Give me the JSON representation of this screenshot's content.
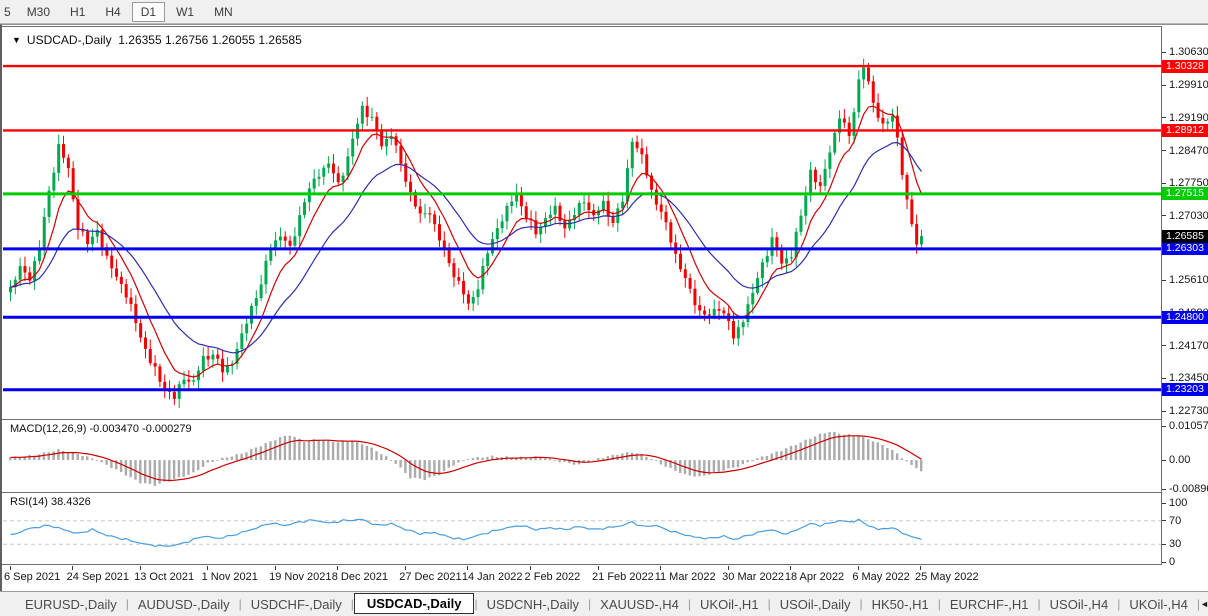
{
  "toolbar": {
    "timeframes": [
      {
        "label": "5",
        "active": false
      },
      {
        "label": "M30",
        "active": false
      },
      {
        "label": "H1",
        "active": false
      },
      {
        "label": "H4",
        "active": false
      },
      {
        "label": "D1",
        "active": true
      },
      {
        "label": "W1",
        "active": false
      },
      {
        "label": "MN",
        "active": false
      }
    ]
  },
  "chart_data": {
    "type": "candlestick",
    "symbol": "USDCAD",
    "timeframe": "Daily",
    "dropdown_icon": "▼",
    "header_display": "USDCAD-,Daily  1.26355 1.26756 1.26055 1.26585",
    "ohlc_display": {
      "open": "1.26355",
      "high": "1.26756",
      "low": "1.26055",
      "close": "1.26585"
    },
    "grid": false,
    "legend_position": "none",
    "y_axis": {
      "visible_range": [
        1.2258,
        1.3119
      ],
      "ticks": [
        {
          "value": 1.3063,
          "label": "1.30630"
        },
        {
          "value": 1.2991,
          "label": "1.29910"
        },
        {
          "value": 1.2919,
          "label": "1.29190"
        },
        {
          "value": 1.2847,
          "label": "1.28470"
        },
        {
          "value": 1.2775,
          "label": "1.27750"
        },
        {
          "value": 1.2703,
          "label": "1.27030"
        },
        {
          "value": 1.2631,
          "label": "1.26310"
        },
        {
          "value": 1.2561,
          "label": "1.25610"
        },
        {
          "value": 1.2489,
          "label": "1.24890"
        },
        {
          "value": 1.2417,
          "label": "1.24170"
        },
        {
          "value": 1.2345,
          "label": "1.23450"
        },
        {
          "value": 1.2273,
          "label": "1.22730"
        }
      ]
    },
    "x_axis": {
      "ticks": [
        {
          "label": "6 Sep 2021",
          "candle": 0
        },
        {
          "label": "24 Sep 2021",
          "candle": 13
        },
        {
          "label": "13 Oct 2021",
          "candle": 27
        },
        {
          "label": "1 Nov 2021",
          "candle": 41
        },
        {
          "label": "19 Nov 2021",
          "candle": 55
        },
        {
          "label": "8 Dec 2021",
          "candle": 68
        },
        {
          "label": "27 Dec 2021",
          "candle": 82
        },
        {
          "label": "14 Jan 2022",
          "candle": 95
        },
        {
          "label": "2 Feb 2022",
          "candle": 108
        },
        {
          "label": "21 Feb 2022",
          "candle": 122
        },
        {
          "label": "11 Mar 2022",
          "candle": 135
        },
        {
          "label": "30 Mar 2022",
          "candle": 149
        },
        {
          "label": "18 Apr 2022",
          "candle": 162
        },
        {
          "label": "6 May 2022",
          "candle": 176
        },
        {
          "label": "25 May 2022",
          "candle": 189
        }
      ]
    },
    "levels": [
      {
        "price": 1.30328,
        "label": "1.30328",
        "color": "#FF0000",
        "role": "resistance"
      },
      {
        "price": 1.28912,
        "label": "1.28912",
        "color": "#FF0000",
        "role": "resistance"
      },
      {
        "price": 1.27515,
        "label": "1.27515",
        "color": "#00CC00",
        "role": "pivot"
      },
      {
        "price": 1.26303,
        "label": "1.26303",
        "color": "#0000EE",
        "role": "support"
      },
      {
        "price": 1.248,
        "label": "1.24800",
        "color": "#0000EE",
        "role": "support"
      },
      {
        "price": 1.23203,
        "label": "1.23203",
        "color": "#0000EE",
        "role": "support"
      }
    ],
    "current_price": {
      "value": 1.26585,
      "label": "1.26585",
      "label_bg": "#000000"
    },
    "candles": {
      "count": 190,
      "note": "approximate digitized daily closes, Sep 2021 - May 2022",
      "close_keypoints": [
        [
          0,
          1.2545
        ],
        [
          2,
          1.2585
        ],
        [
          4,
          1.257
        ],
        [
          6,
          1.263
        ],
        [
          8,
          1.276
        ],
        [
          10,
          1.2855
        ],
        [
          12,
          1.2805
        ],
        [
          14,
          1.268
        ],
        [
          16,
          1.264
        ],
        [
          18,
          1.2675
        ],
        [
          20,
          1.2605
        ],
        [
          23,
          1.2555
        ],
        [
          26,
          1.247
        ],
        [
          29,
          1.238
        ],
        [
          32,
          1.2325
        ],
        [
          34,
          1.23
        ],
        [
          36,
          1.235
        ],
        [
          38,
          1.2335
        ],
        [
          40,
          1.239
        ],
        [
          42,
          1.24
        ],
        [
          44,
          1.236
        ],
        [
          46,
          1.2385
        ],
        [
          48,
          1.2435
        ],
        [
          50,
          1.2505
        ],
        [
          52,
          1.255
        ],
        [
          54,
          1.264
        ],
        [
          56,
          1.266
        ],
        [
          58,
          1.263
        ],
        [
          60,
          1.2705
        ],
        [
          62,
          1.276
        ],
        [
          64,
          1.28
        ],
        [
          66,
          1.2815
        ],
        [
          68,
          1.2775
        ],
        [
          70,
          1.283
        ],
        [
          73,
          1.2945
        ],
        [
          75,
          1.2915
        ],
        [
          77,
          1.286
        ],
        [
          79,
          1.2885
        ],
        [
          81,
          1.2815
        ],
        [
          83,
          1.2755
        ],
        [
          85,
          1.27
        ],
        [
          87,
          1.2715
        ],
        [
          89,
          1.265
        ],
        [
          91,
          1.26
        ],
        [
          93,
          1.2555
        ],
        [
          95,
          1.2505
        ],
        [
          97,
          1.255
        ],
        [
          99,
          1.262
        ],
        [
          101,
          1.268
        ],
        [
          103,
          1.2715
        ],
        [
          105,
          1.2755
        ],
        [
          107,
          1.27
        ],
        [
          109,
          1.2665
        ],
        [
          111,
          1.27
        ],
        [
          113,
          1.2715
        ],
        [
          115,
          1.268
        ],
        [
          117,
          1.2705
        ],
        [
          119,
          1.274
        ],
        [
          121,
          1.27
        ],
        [
          123,
          1.273
        ],
        [
          125,
          1.269
        ],
        [
          127,
          1.2735
        ],
        [
          129,
          1.2875
        ],
        [
          131,
          1.283
        ],
        [
          133,
          1.276
        ],
        [
          135,
          1.271
        ],
        [
          137,
          1.265
        ],
        [
          139,
          1.259
        ],
        [
          141,
          1.2535
        ],
        [
          143,
          1.2495
        ],
        [
          145,
          1.248
        ],
        [
          147,
          1.2505
        ],
        [
          149,
          1.247
        ],
        [
          150,
          1.243
        ],
        [
          152,
          1.248
        ],
        [
          154,
          1.253
        ],
        [
          156,
          1.26
        ],
        [
          158,
          1.265
        ],
        [
          160,
          1.26
        ],
        [
          162,
          1.262
        ],
        [
          164,
          1.27
        ],
        [
          166,
          1.2805
        ],
        [
          168,
          1.276
        ],
        [
          170,
          1.285
        ],
        [
          172,
          1.292
        ],
        [
          174,
          1.288
        ],
        [
          176,
          1.3
        ],
        [
          177,
          1.303
        ],
        [
          179,
          1.2955
        ],
        [
          181,
          1.29
        ],
        [
          183,
          1.292
        ],
        [
          184,
          1.288
        ],
        [
          185,
          1.28
        ],
        [
          186,
          1.273
        ],
        [
          188,
          1.264
        ],
        [
          189,
          1.26585
        ]
      ]
    },
    "moving_averages": [
      {
        "color": "#CE0000",
        "approx_period": 8
      },
      {
        "color": "#2E2EA8",
        "approx_period": 21
      }
    ],
    "indicators": {
      "macd": {
        "label_display": "MACD(12,26,9) -0.003470 -0.000279",
        "name": "MACD",
        "params": [
          12,
          26,
          9
        ],
        "macd_value": -0.00347,
        "signal_value": -0.000279,
        "axis_ticks": [
          {
            "value": 0.010578,
            "label": "0.010578"
          },
          {
            "value": 0,
            "label": "0.00"
          },
          {
            "value": -0.00896,
            "label": "-0.00896"
          }
        ],
        "series_keypoints": [
          [
            0,
            0.0008
          ],
          [
            5,
            0.0015
          ],
          [
            10,
            0.0032
          ],
          [
            14,
            0.002
          ],
          [
            18,
            0.0
          ],
          [
            22,
            -0.003
          ],
          [
            27,
            -0.007
          ],
          [
            30,
            -0.0078
          ],
          [
            34,
            -0.006
          ],
          [
            38,
            -0.004
          ],
          [
            41,
            -0.001
          ],
          [
            44,
            0.0005
          ],
          [
            48,
            0.002
          ],
          [
            52,
            0.0045
          ],
          [
            56,
            0.007
          ],
          [
            58,
            0.0078
          ],
          [
            61,
            0.0058
          ],
          [
            64,
            0.0065
          ],
          [
            68,
            0.0055
          ],
          [
            71,
            0.006
          ],
          [
            74,
            0.0045
          ],
          [
            77,
            0.002
          ],
          [
            80,
            -0.001
          ],
          [
            83,
            -0.0055
          ],
          [
            86,
            -0.006
          ],
          [
            89,
            -0.0045
          ],
          [
            92,
            -0.0015
          ],
          [
            95,
            0.0005
          ],
          [
            100,
            0.0012
          ],
          [
            105,
            0.0008
          ],
          [
            110,
            0.001
          ],
          [
            114,
            -0.0005
          ],
          [
            118,
            -0.0015
          ],
          [
            122,
            0.0005
          ],
          [
            126,
            0.0018
          ],
          [
            129,
            0.0025
          ],
          [
            132,
            0.0012
          ],
          [
            136,
            -0.002
          ],
          [
            140,
            -0.0045
          ],
          [
            143,
            -0.0052
          ],
          [
            147,
            -0.0035
          ],
          [
            151,
            -0.002
          ],
          [
            155,
            0.0005
          ],
          [
            160,
            0.003
          ],
          [
            164,
            0.0055
          ],
          [
            168,
            0.008
          ],
          [
            170,
            0.0088
          ],
          [
            173,
            0.008
          ],
          [
            176,
            0.0075
          ],
          [
            179,
            0.006
          ],
          [
            182,
            0.004
          ],
          [
            184,
            0.002
          ],
          [
            186,
            -0.0005
          ],
          [
            189,
            -0.00347
          ]
        ]
      },
      "rsi": {
        "label_display": "RSI(14) 38.4326",
        "name": "RSI",
        "params": [
          14
        ],
        "value": 38.4326,
        "axis_ticks": [
          {
            "value": 100,
            "label": "100"
          },
          {
            "value": 70,
            "label": "70"
          },
          {
            "value": 30,
            "label": "30"
          },
          {
            "value": 0,
            "label": "0"
          }
        ],
        "dashed_levels": [
          70,
          30
        ],
        "series_keypoints": [
          [
            0,
            45
          ],
          [
            4,
            57
          ],
          [
            8,
            62
          ],
          [
            11,
            55
          ],
          [
            14,
            48
          ],
          [
            17,
            55
          ],
          [
            20,
            45
          ],
          [
            24,
            38
          ],
          [
            28,
            30
          ],
          [
            31,
            27
          ],
          [
            34,
            28
          ],
          [
            37,
            35
          ],
          [
            40,
            44
          ],
          [
            43,
            40
          ],
          [
            46,
            45
          ],
          [
            50,
            55
          ],
          [
            54,
            66
          ],
          [
            57,
            62
          ],
          [
            60,
            68
          ],
          [
            63,
            71
          ],
          [
            66,
            66
          ],
          [
            69,
            70
          ],
          [
            73,
            72
          ],
          [
            76,
            62
          ],
          [
            79,
            65
          ],
          [
            82,
            55
          ],
          [
            85,
            48
          ],
          [
            88,
            50
          ],
          [
            91,
            42
          ],
          [
            94,
            38
          ],
          [
            97,
            45
          ],
          [
            100,
            52
          ],
          [
            103,
            58
          ],
          [
            106,
            62
          ],
          [
            109,
            55
          ],
          [
            112,
            58
          ],
          [
            115,
            55
          ],
          [
            118,
            60
          ],
          [
            121,
            55
          ],
          [
            124,
            58
          ],
          [
            127,
            62
          ],
          [
            129,
            68
          ],
          [
            131,
            60
          ],
          [
            134,
            62
          ],
          [
            136,
            55
          ],
          [
            139,
            48
          ],
          [
            142,
            42
          ],
          [
            145,
            40
          ],
          [
            148,
            44
          ],
          [
            150,
            38
          ],
          [
            153,
            45
          ],
          [
            156,
            52
          ],
          [
            158,
            55
          ],
          [
            160,
            48
          ],
          [
            162,
            50
          ],
          [
            164,
            58
          ],
          [
            166,
            65
          ],
          [
            168,
            62
          ],
          [
            170,
            66
          ],
          [
            172,
            70
          ],
          [
            174,
            68
          ],
          [
            176,
            71
          ],
          [
            178,
            62
          ],
          [
            180,
            55
          ],
          [
            182,
            58
          ],
          [
            184,
            55
          ],
          [
            186,
            45
          ],
          [
            189,
            38.43
          ]
        ]
      }
    },
    "colors": {
      "bull": "#00A94F",
      "bear": "#F30000",
      "ma_fast": "#CE0000",
      "ma_slow": "#2E2EA8",
      "macd_hist": "#ABABAB",
      "macd_signal": "#CC0000",
      "rsi_line": "#4A9EE0",
      "rsi_dash": "#C9C9C9",
      "background": "#FFFFFF"
    }
  },
  "tab_bar": {
    "scroll_left": "◄",
    "scroll_right": "►",
    "tabs": [
      {
        "label": "EURUSD-,Daily",
        "active": false
      },
      {
        "label": "AUDUSD-,Daily",
        "active": false
      },
      {
        "label": "USDCHF-,Daily",
        "active": false
      },
      {
        "label": "USDCAD-,Daily",
        "active": true
      },
      {
        "label": "USDCNH-,Daily",
        "active": false
      },
      {
        "label": "XAUUSD-,H4",
        "active": false
      },
      {
        "label": "UKOil-,H1",
        "active": false
      },
      {
        "label": "USOil-,Daily",
        "active": false
      },
      {
        "label": "HK50-,H1",
        "active": false
      },
      {
        "label": "EURCHF-,H1",
        "active": false
      },
      {
        "label": "USOil-,H4",
        "active": false
      },
      {
        "label": "UKOil-,H4",
        "active": false
      }
    ]
  }
}
